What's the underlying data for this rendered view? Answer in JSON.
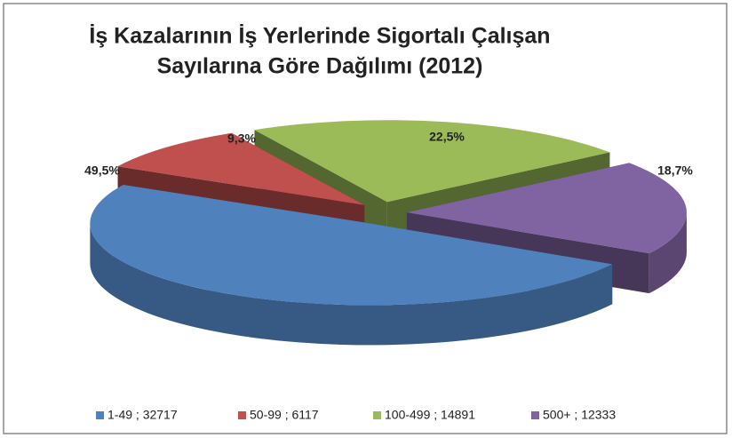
{
  "chart_data": {
    "type": "pie",
    "title": [
      "İş Kazalarının İş Yerlerinde Sigortalı Çalışan",
      "Sayılarına Göre Dağılımı (2012)"
    ],
    "categories": [
      "1-49 ; 32717",
      "50-99 ; 6117",
      "100-499 ; 14891",
      "500+ ; 12333"
    ],
    "values": [
      49.5,
      9.3,
      22.5,
      18.7
    ],
    "value_labels": [
      "49,5%",
      "9,3%",
      "22,5%",
      "18,7%"
    ],
    "colors": [
      "#4f81bd",
      "#c0504d",
      "#9bbb59",
      "#8064a2"
    ],
    "legend": "bottom"
  }
}
